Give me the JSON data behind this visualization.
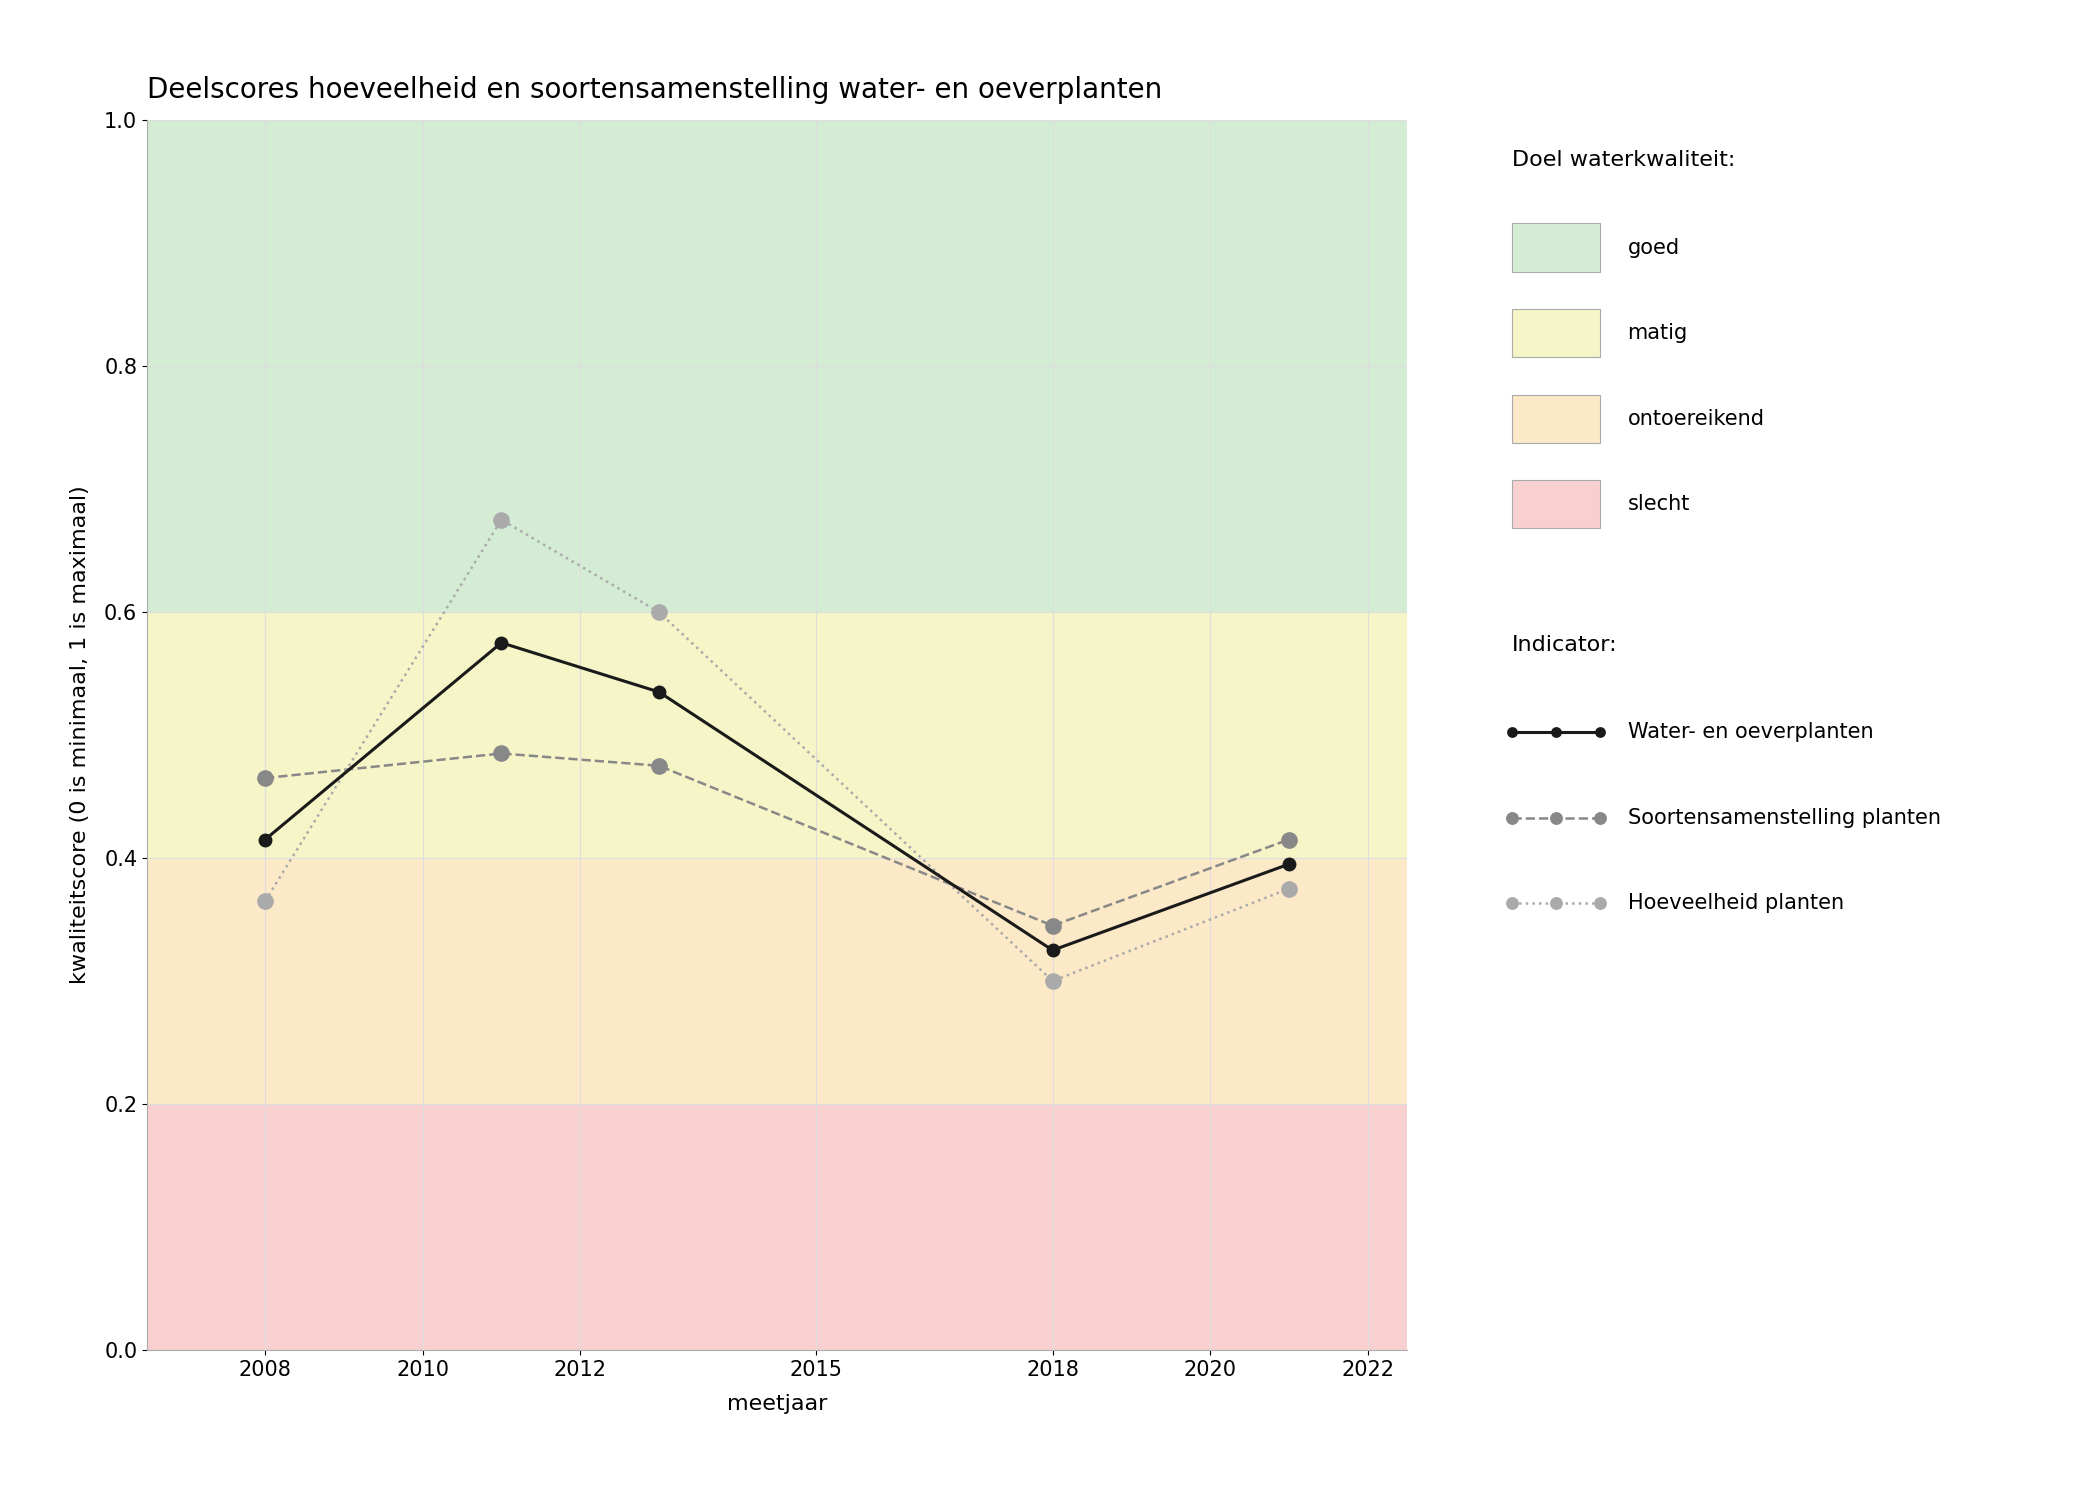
{
  "title": "Deelscores hoeveelheid en soortensamenstelling water- en oeverplanten",
  "xlabel": "meetjaar",
  "ylabel": "kwaliteitscore (0 is minimaal, 1 is maximaal)",
  "xlim": [
    2006.5,
    2022.5
  ],
  "ylim": [
    0.0,
    1.0
  ],
  "xticks": [
    2008,
    2010,
    2012,
    2015,
    2018,
    2020,
    2022
  ],
  "yticks": [
    0.0,
    0.2,
    0.4,
    0.6,
    0.8,
    1.0
  ],
  "bg_colors": [
    {
      "name": "goed",
      "color": "#d5ecd4",
      "ymin": 0.6,
      "ymax": 1.0
    },
    {
      "name": "matig",
      "color": "#f5f5c8",
      "ymin": 0.4,
      "ymax": 0.6
    },
    {
      "name": "ontoereikend",
      "color": "#fce9c8",
      "ymin": 0.2,
      "ymax": 0.4
    },
    {
      "name": "slecht",
      "color": "#f9d0d0",
      "ymin": 0.0,
      "ymax": 0.2
    }
  ],
  "series": [
    {
      "key": "water_oever",
      "label": "Water- en oeverplanten",
      "years": [
        2008,
        2011,
        2013,
        2018,
        2021
      ],
      "values": [
        0.415,
        0.575,
        0.535,
        0.325,
        0.395
      ],
      "color": "#1a1a1a",
      "linestyle": "-",
      "linewidth": 2.2,
      "marker": "o",
      "markersize": 9,
      "markerfacecolor": "#1a1a1a",
      "zorder": 5
    },
    {
      "key": "soortensamenstelling",
      "label": "Soortensamenstelling planten",
      "years": [
        2008,
        2011,
        2013,
        2018,
        2021
      ],
      "values": [
        0.465,
        0.485,
        0.475,
        0.345,
        0.415
      ],
      "color": "#888888",
      "linestyle": "--",
      "linewidth": 1.8,
      "marker": "o",
      "markersize": 11,
      "markerfacecolor": "#888888",
      "zorder": 4
    },
    {
      "key": "hoeveelheid",
      "label": "Hoeveelheid planten",
      "years": [
        2008,
        2011,
        2013,
        2018,
        2021
      ],
      "values": [
        0.365,
        0.675,
        0.6,
        0.3,
        0.375
      ],
      "color": "#aaaaaa",
      "linestyle": ":",
      "linewidth": 1.8,
      "marker": "o",
      "markersize": 11,
      "markerfacecolor": "#aaaaaa",
      "zorder": 4
    }
  ],
  "legend_title_quality": "Doel waterkwaliteit:",
  "legend_title_indicator": "Indicator:",
  "bg_legend": [
    {
      "label": "goed",
      "color": "#d5ecd4"
    },
    {
      "label": "matig",
      "color": "#f5f5c8"
    },
    {
      "label": "ontoereikend",
      "color": "#fce9c8"
    },
    {
      "label": "slecht",
      "color": "#f9d0d0"
    }
  ],
  "background_color": "#ffffff",
  "grid_color": "#dddddd",
  "title_fontsize": 20,
  "axis_label_fontsize": 16,
  "tick_fontsize": 15,
  "legend_title_fontsize": 16,
  "legend_item_fontsize": 15
}
